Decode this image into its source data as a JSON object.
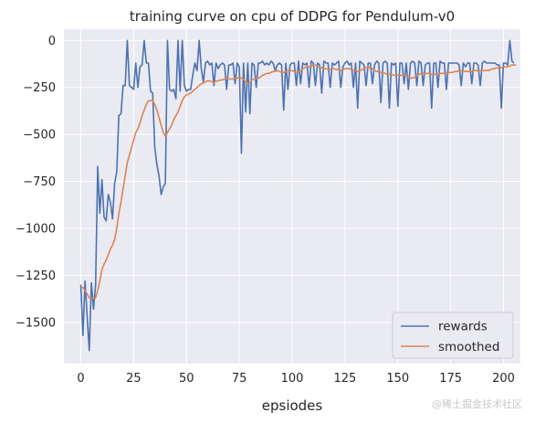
{
  "chart_data": {
    "type": "line",
    "title": "training curve on cpu of DDPG for Pendulum-v0",
    "xlabel": "epsiodes",
    "ylabel": "",
    "xlim": [
      -8,
      208
    ],
    "ylim": [
      -1720,
      60
    ],
    "xticks": [
      0,
      25,
      50,
      75,
      100,
      125,
      150,
      175,
      200
    ],
    "yticks": [
      0,
      -250,
      -500,
      -750,
      -1000,
      -1250,
      -1500
    ],
    "ytick_labels": [
      "0",
      "−250",
      "−500",
      "−750",
      "−1000",
      "−1250",
      "−1500"
    ],
    "grid": true,
    "legend_position": "bottom-right",
    "series": [
      {
        "name": "rewards",
        "color": "#4c72b0",
        "values": [
          -1300,
          -1570,
          -1280,
          -1470,
          -1650,
          -1290,
          -1430,
          -1300,
          -670,
          -920,
          -740,
          -940,
          -960,
          -820,
          -860,
          -950,
          -760,
          -700,
          -400,
          -390,
          -240,
          -240,
          0,
          -240,
          -250,
          -260,
          -120,
          -250,
          -140,
          -130,
          0,
          -120,
          -120,
          -270,
          -280,
          -570,
          -660,
          -720,
          -820,
          -780,
          -760,
          0,
          -260,
          -270,
          -260,
          -310,
          0,
          -270,
          0,
          -240,
          -270,
          -260,
          -260,
          -180,
          -120,
          -160,
          0,
          -150,
          -220,
          -120,
          -110,
          -130,
          -120,
          -240,
          -120,
          -150,
          -130,
          -120,
          -130,
          -260,
          -130,
          -130,
          -120,
          -230,
          -120,
          -140,
          -600,
          -120,
          -380,
          -120,
          -390,
          -120,
          -130,
          -250,
          -120,
          -120,
          -110,
          -130,
          -120,
          -130,
          -110,
          -120,
          -160,
          -130,
          -120,
          -130,
          -370,
          -120,
          -260,
          -130,
          -120,
          -120,
          -240,
          -110,
          -230,
          -120,
          -130,
          -120,
          -250,
          -110,
          -120,
          -240,
          -120,
          -130,
          -280,
          -110,
          -120,
          -120,
          -250,
          -120,
          -130,
          -120,
          -110,
          -250,
          -140,
          -120,
          -110,
          -130,
          -120,
          -250,
          -120,
          -360,
          -110,
          -120,
          -130,
          -240,
          -120,
          -120,
          -230,
          -130,
          -110,
          -120,
          -330,
          -120,
          -110,
          -120,
          -360,
          -120,
          -130,
          -120,
          -350,
          -120,
          -120,
          -230,
          -120,
          -260,
          -120,
          -110,
          -120,
          -240,
          -110,
          -120,
          -240,
          -130,
          -120,
          -120,
          -360,
          -120,
          -120,
          -250,
          -110,
          -120,
          -120,
          -260,
          -120,
          -120,
          -120,
          -120,
          -120,
          -130,
          -240,
          -120,
          -140,
          -120,
          -120,
          -230,
          -120,
          -120,
          -130,
          -240,
          -120,
          -110,
          -120,
          -120,
          -120,
          -120,
          -120,
          -130,
          -130,
          -360,
          -120,
          -120,
          -130,
          0,
          -110,
          -120
        ]
      },
      {
        "name": "smoothed",
        "color": "#dd8452",
        "values": [
          -1310,
          -1315,
          -1330,
          -1350,
          -1370,
          -1370,
          -1372,
          -1370,
          -1330,
          -1280,
          -1220,
          -1190,
          -1170,
          -1140,
          -1110,
          -1090,
          -1060,
          -1000,
          -920,
          -860,
          -790,
          -720,
          -650,
          -610,
          -570,
          -530,
          -490,
          -470,
          -440,
          -400,
          -370,
          -340,
          -320,
          -320,
          -320,
          -340,
          -370,
          -410,
          -450,
          -490,
          -510,
          -490,
          -470,
          -450,
          -420,
          -400,
          -380,
          -350,
          -320,
          -300,
          -290,
          -285,
          -280,
          -270,
          -260,
          -250,
          -240,
          -230,
          -225,
          -220,
          -215,
          -215,
          -220,
          -225,
          -215,
          -215,
          -210,
          -210,
          -205,
          -200,
          -205,
          -205,
          -205,
          -200,
          -200,
          -195,
          -200,
          -205,
          -220,
          -230,
          -225,
          -210,
          -205,
          -205,
          -200,
          -195,
          -185,
          -180,
          -175,
          -175,
          -170,
          -165,
          -165,
          -160,
          -165,
          -170,
          -170,
          -165,
          -160,
          -160,
          -160,
          -165,
          -170,
          -165,
          -160,
          -150,
          -145,
          -140,
          -140,
          -135,
          -130,
          -130,
          -140,
          -140,
          -145,
          -150,
          -150,
          -155,
          -155,
          -150,
          -150,
          -155,
          -155,
          -160,
          -155,
          -150,
          -150,
          -150,
          -155,
          -160,
          -160,
          -165,
          -160,
          -155,
          -150,
          -145,
          -145,
          -145,
          -150,
          -160,
          -165,
          -165,
          -170,
          -170,
          -175,
          -180,
          -180,
          -180,
          -185,
          -185,
          -185,
          -185,
          -185,
          -185,
          -190,
          -195,
          -200,
          -200,
          -195,
          -190,
          -180,
          -175,
          -175,
          -175,
          -175,
          -175,
          -180,
          -180,
          -180,
          -180,
          -175,
          -175,
          -175,
          -170,
          -170,
          -170,
          -170,
          -165,
          -165,
          -160,
          -160,
          -160,
          -165,
          -165,
          -165,
          -165,
          -160,
          -160,
          -160,
          -160,
          -160,
          -160,
          -160,
          -160,
          -155,
          -150,
          -150,
          -145,
          -145,
          -145,
          -140,
          -140,
          -140,
          -135,
          -130,
          -130,
          -130
        ]
      }
    ]
  },
  "watermark": "@稀土掘金技术社区"
}
